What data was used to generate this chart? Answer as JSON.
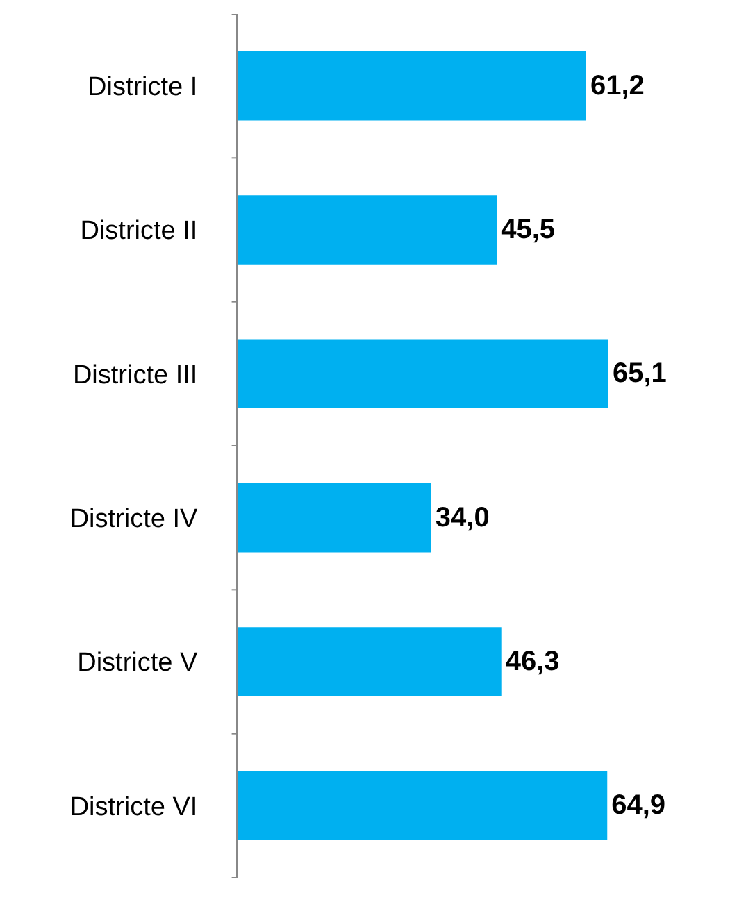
{
  "chart_data": {
    "type": "bar",
    "orientation": "horizontal",
    "categories": [
      "Districte I",
      "Districte II",
      "Districte III",
      "Districte IV",
      "Districte V",
      "Districte VI"
    ],
    "values": [
      61.2,
      45.5,
      65.1,
      34.0,
      46.3,
      64.9
    ],
    "value_labels": [
      "61,2",
      "45,5",
      "65,1",
      "34,0",
      "46,3",
      "64,9"
    ],
    "color": "#00b0f0"
  }
}
